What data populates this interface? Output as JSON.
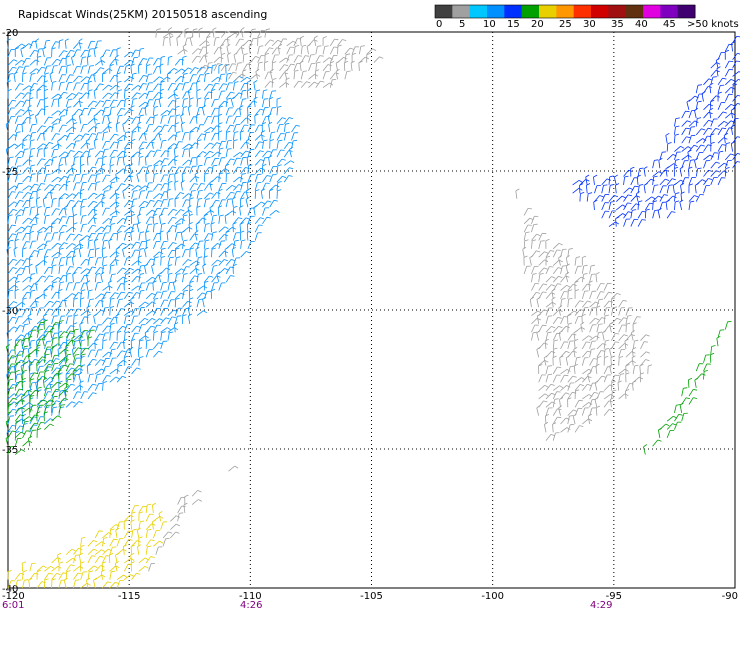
{
  "chart_data": {
    "type": "scatter",
    "title": "Rapidscat Winds(25KM) 20150518 ascending",
    "xlim": [
      -120,
      -90
    ],
    "ylim": [
      -40,
      -20
    ],
    "x_ticks": [
      -120,
      -115,
      -110,
      -105,
      -100,
      -95,
      -90
    ],
    "x_tick_labels": [
      "-120",
      "-115",
      "-110",
      "-105",
      "-100",
      "-95",
      "-90"
    ],
    "y_ticks": [
      -20,
      -25,
      -30,
      -35,
      -40
    ],
    "y_tick_labels": [
      "-20",
      "-25",
      "-30",
      "-35",
      "-40"
    ],
    "grid": true,
    "colorbar": {
      "position": "top-right",
      "unit_label": ">50 knots",
      "tick_labels": [
        "0",
        "5",
        "10",
        "15",
        "20",
        "25",
        "30",
        "35",
        "40",
        "45",
        ">50 knots"
      ],
      "colors": [
        "#404040",
        "#a0a0a0",
        "#00c8ff",
        "#0090ff",
        "#0030ff",
        "#00a000",
        "#e8d000",
        "#ff9800",
        "#ff3000",
        "#d00000",
        "#a01010",
        "#603010",
        "#e000e0",
        "#8000c0",
        "#400070"
      ]
    },
    "pass_times": [
      {
        "x": -120,
        "label": "6:01"
      },
      {
        "x": -110,
        "label": "4:26"
      },
      {
        "x": -95,
        "label": "4:29"
      }
    ],
    "swaths": [
      {
        "name": "",
        "speed_knots": 11,
        "points": [
          [
            -120.0,
            -20.5
          ],
          [
            -117.0,
            -20.5
          ],
          [
            -114.0,
            -21.0
          ],
          [
            -111.0,
            -21.5
          ],
          [
            -109.0,
            -22.5
          ],
          [
            -108.0,
            -24.0
          ],
          [
            -109.0,
            -26.5
          ],
          [
            -110.5,
            -28.5
          ],
          [
            -112.5,
            -30.5
          ],
          [
            -115.0,
            -32.5
          ],
          [
            -118.0,
            -34.0
          ],
          [
            -120.0,
            -35.0
          ]
        ]
      },
      {
        "name": "",
        "speed_knots": 6,
        "points": [
          [
            -114.5,
            -20.0
          ],
          [
            -112.0,
            -20.0
          ],
          [
            -108.0,
            -20.3
          ],
          [
            -105.5,
            -20.6
          ],
          [
            -104.5,
            -21.0
          ],
          [
            -106.5,
            -22.0
          ],
          [
            -109.5,
            -22.0
          ],
          [
            -112.0,
            -21.5
          ]
        ]
      },
      {
        "name": "",
        "speed_knots": 19,
        "points": [
          [
            -120.0,
            -35.5
          ],
          [
            -119.0,
            -35.0
          ],
          [
            -118.0,
            -34.0
          ],
          [
            -116.5,
            -31.0
          ],
          [
            -118.5,
            -30.5
          ],
          [
            -120.0,
            -31.5
          ]
        ]
      },
      {
        "name": "",
        "speed_knots": 22,
        "points": [
          [
            -120.0,
            -39.5
          ],
          [
            -118.0,
            -39.0
          ],
          [
            -116.0,
            -38.0
          ],
          [
            -114.5,
            -37.0
          ],
          [
            -113.5,
            -37.5
          ],
          [
            -114.5,
            -39.5
          ],
          [
            -115.5,
            -40.0
          ],
          [
            -120.0,
            -40.0
          ]
        ]
      },
      {
        "name": "",
        "speed_knots": 4,
        "points": [
          [
            -113.0,
            -37.0
          ],
          [
            -111.0,
            -36.0
          ],
          [
            -110.0,
            -35.2
          ],
          [
            -112.0,
            -36.5
          ],
          [
            -113.5,
            -38.5
          ],
          [
            -114.5,
            -40.0
          ]
        ]
      },
      {
        "name": "",
        "speed_knots": 14,
        "points": [
          [
            -93.5,
            -25.0
          ],
          [
            -92.0,
            -22.5
          ],
          [
            -90.0,
            -20.0
          ],
          [
            -90.0,
            -25.0
          ],
          [
            -92.0,
            -26.5
          ],
          [
            -94.0,
            -27.0
          ],
          [
            -95.5,
            -27.0
          ],
          [
            -97.0,
            -25.5
          ]
        ]
      },
      {
        "name": "",
        "speed_knots": 5,
        "points": [
          [
            -99.0,
            -26.0
          ],
          [
            -98.0,
            -27.5
          ],
          [
            -96.0,
            -28.5
          ],
          [
            -94.0,
            -30.5
          ],
          [
            -93.5,
            -32.5
          ],
          [
            -95.5,
            -34.0
          ],
          [
            -98.0,
            -35.0
          ]
        ]
      },
      {
        "name": "",
        "speed_knots": 20,
        "points": [
          [
            -90.0,
            -30.0
          ],
          [
            -91.0,
            -32.0
          ],
          [
            -92.5,
            -34.5
          ],
          [
            -94.0,
            -35.5
          ]
        ]
      }
    ]
  }
}
